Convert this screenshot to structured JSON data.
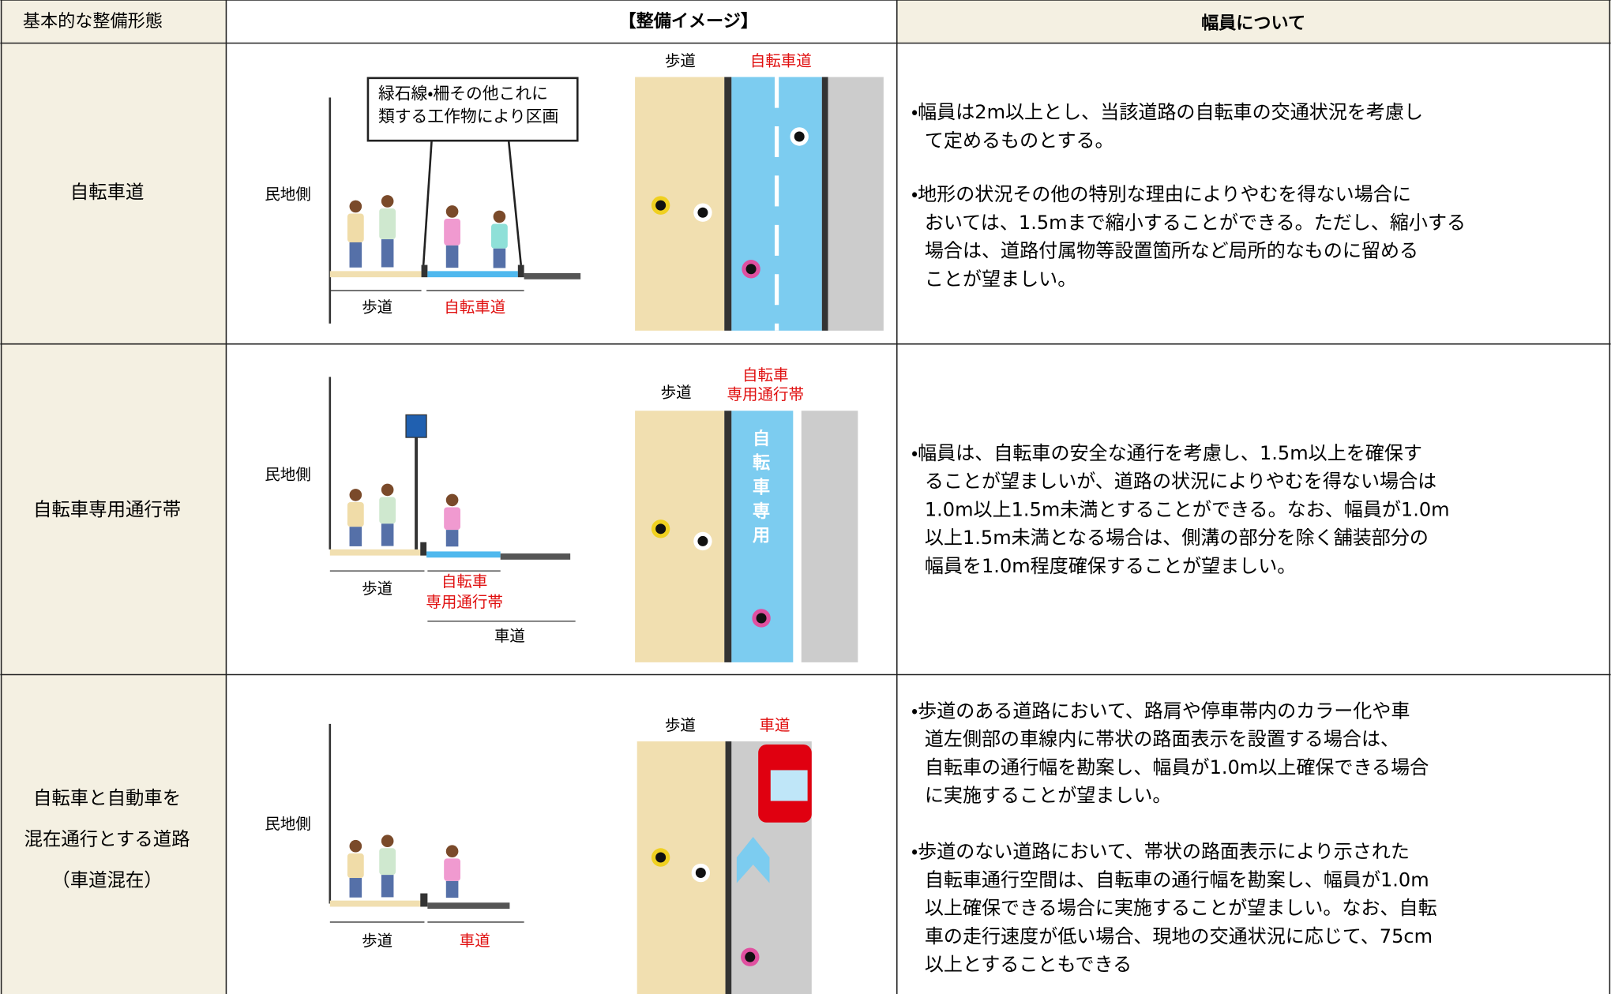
{
  "header": [
    "基本的な整備形態",
    "【整備イメージ】",
    "幅員について"
  ],
  "rows": [
    {
      "form": [
        "自転車道"
      ],
      "image": {
        "callout": [
          "緑石線・柵その他これに",
          "類する工作物により区画"
        ],
        "private_side": "民地側",
        "section_labels": [
          "歩道",
          "自転車道"
        ],
        "plan_labels": [
          "歩道",
          "自転車道"
        ]
      },
      "notes": [
        [
          "・幅員は2m以上とし、当該道路の自転車の交通状況を考慮し",
          "て定めるものとする。"
        ],
        [
          "・地形の状況その他の特別な理由によりやむを得ない場合に",
          "おいては、1.5mまで縮小することができる。ただし、縮小する",
          "場合は、道路付属物等設置箇所など局所的なものに留める",
          "ことが望ましい。"
        ]
      ]
    },
    {
      "form": [
        "自転車専用通行帯"
      ],
      "image": {
        "private_side": "民地側",
        "section_labels": [
          "歩道",
          "自転車",
          "専用通行帯",
          "車道"
        ],
        "plan_labels": [
          "歩道",
          "自転車",
          "専用通行帯"
        ],
        "lane_text": [
          "自",
          "転",
          "車",
          "専",
          "用"
        ]
      },
      "notes": [
        [
          "・幅員は、自転車の安全な通行を考慮し、1.5m以上を確保す",
          "ることが望ましいが、道路の状況によりやむを得ない場合は",
          "1.0m以上1.5m未満とすることができる。なお、幅員が1.0m",
          "以上1.5m未満となる場合は、側溝の部分を除く舗装部分の",
          "幅員を1.0m程度確保することが望ましい。"
        ]
      ]
    },
    {
      "form": [
        "自転車と自動車を",
        "混在通行とする道路",
        "（車道混在）"
      ],
      "image": {
        "private_side": "民地側",
        "section_labels": [
          "歩道",
          "車道"
        ],
        "plan_labels": [
          "歩道",
          "車道"
        ]
      },
      "notes": [
        [
          "・歩道のある道路において、路肩や停車帯内のカラー化や車",
          "道左側部の車線内に帯状の路面表示を設置する場合は、",
          "自転車の通行幅を勘案し、幅員が1.0m以上確保できる場合",
          "に実施することが望ましい。"
        ],
        [
          "・歩道のない道路において、帯状の路面表示により示された",
          "自転車通行空間は、自転車の通行幅を勘案し、幅員が1.0m",
          "以上確保できる場合に実施することが望ましい。なお、自転",
          "車の走行速度が低い場合、現地の交通状況に応じて、75cm",
          "以上とすることもできる"
        ]
      ]
    }
  ]
}
